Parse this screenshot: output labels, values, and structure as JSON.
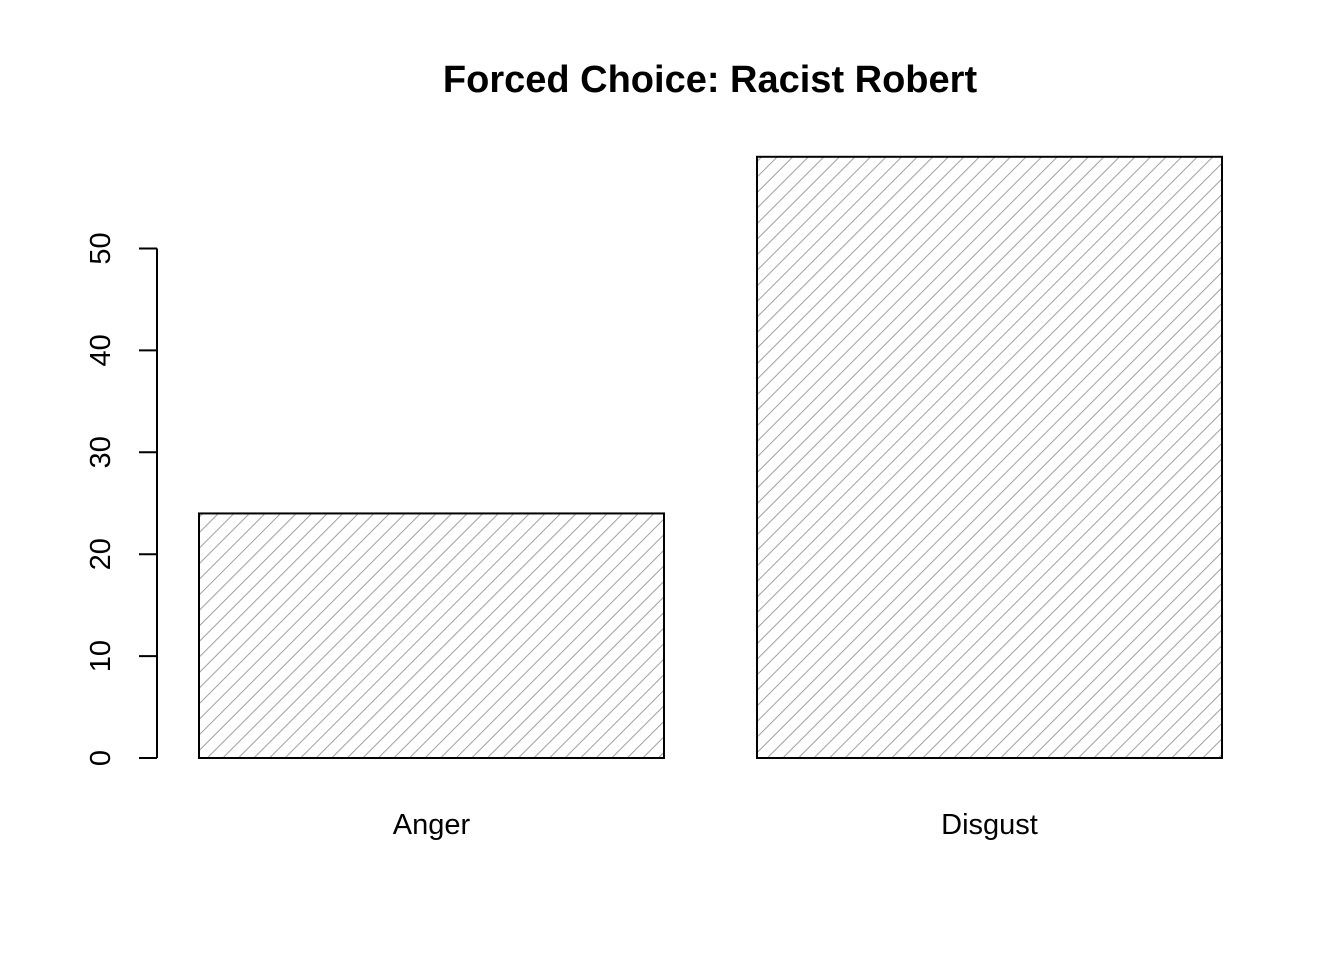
{
  "chart_data": {
    "type": "bar",
    "title": "Forced Choice: Racist Robert",
    "xlabel": "",
    "ylabel": "",
    "categories": [
      "Anger",
      "Disgust"
    ],
    "values": [
      24,
      59
    ],
    "yticks": [
      0,
      10,
      20,
      30,
      40,
      50
    ],
    "ylim": [
      0,
      59
    ],
    "fill_pattern": "diagonal-hatch",
    "bar_border_color": "#000000",
    "hatch_color": "#a0a0a0",
    "grid": false,
    "legend": "none"
  }
}
